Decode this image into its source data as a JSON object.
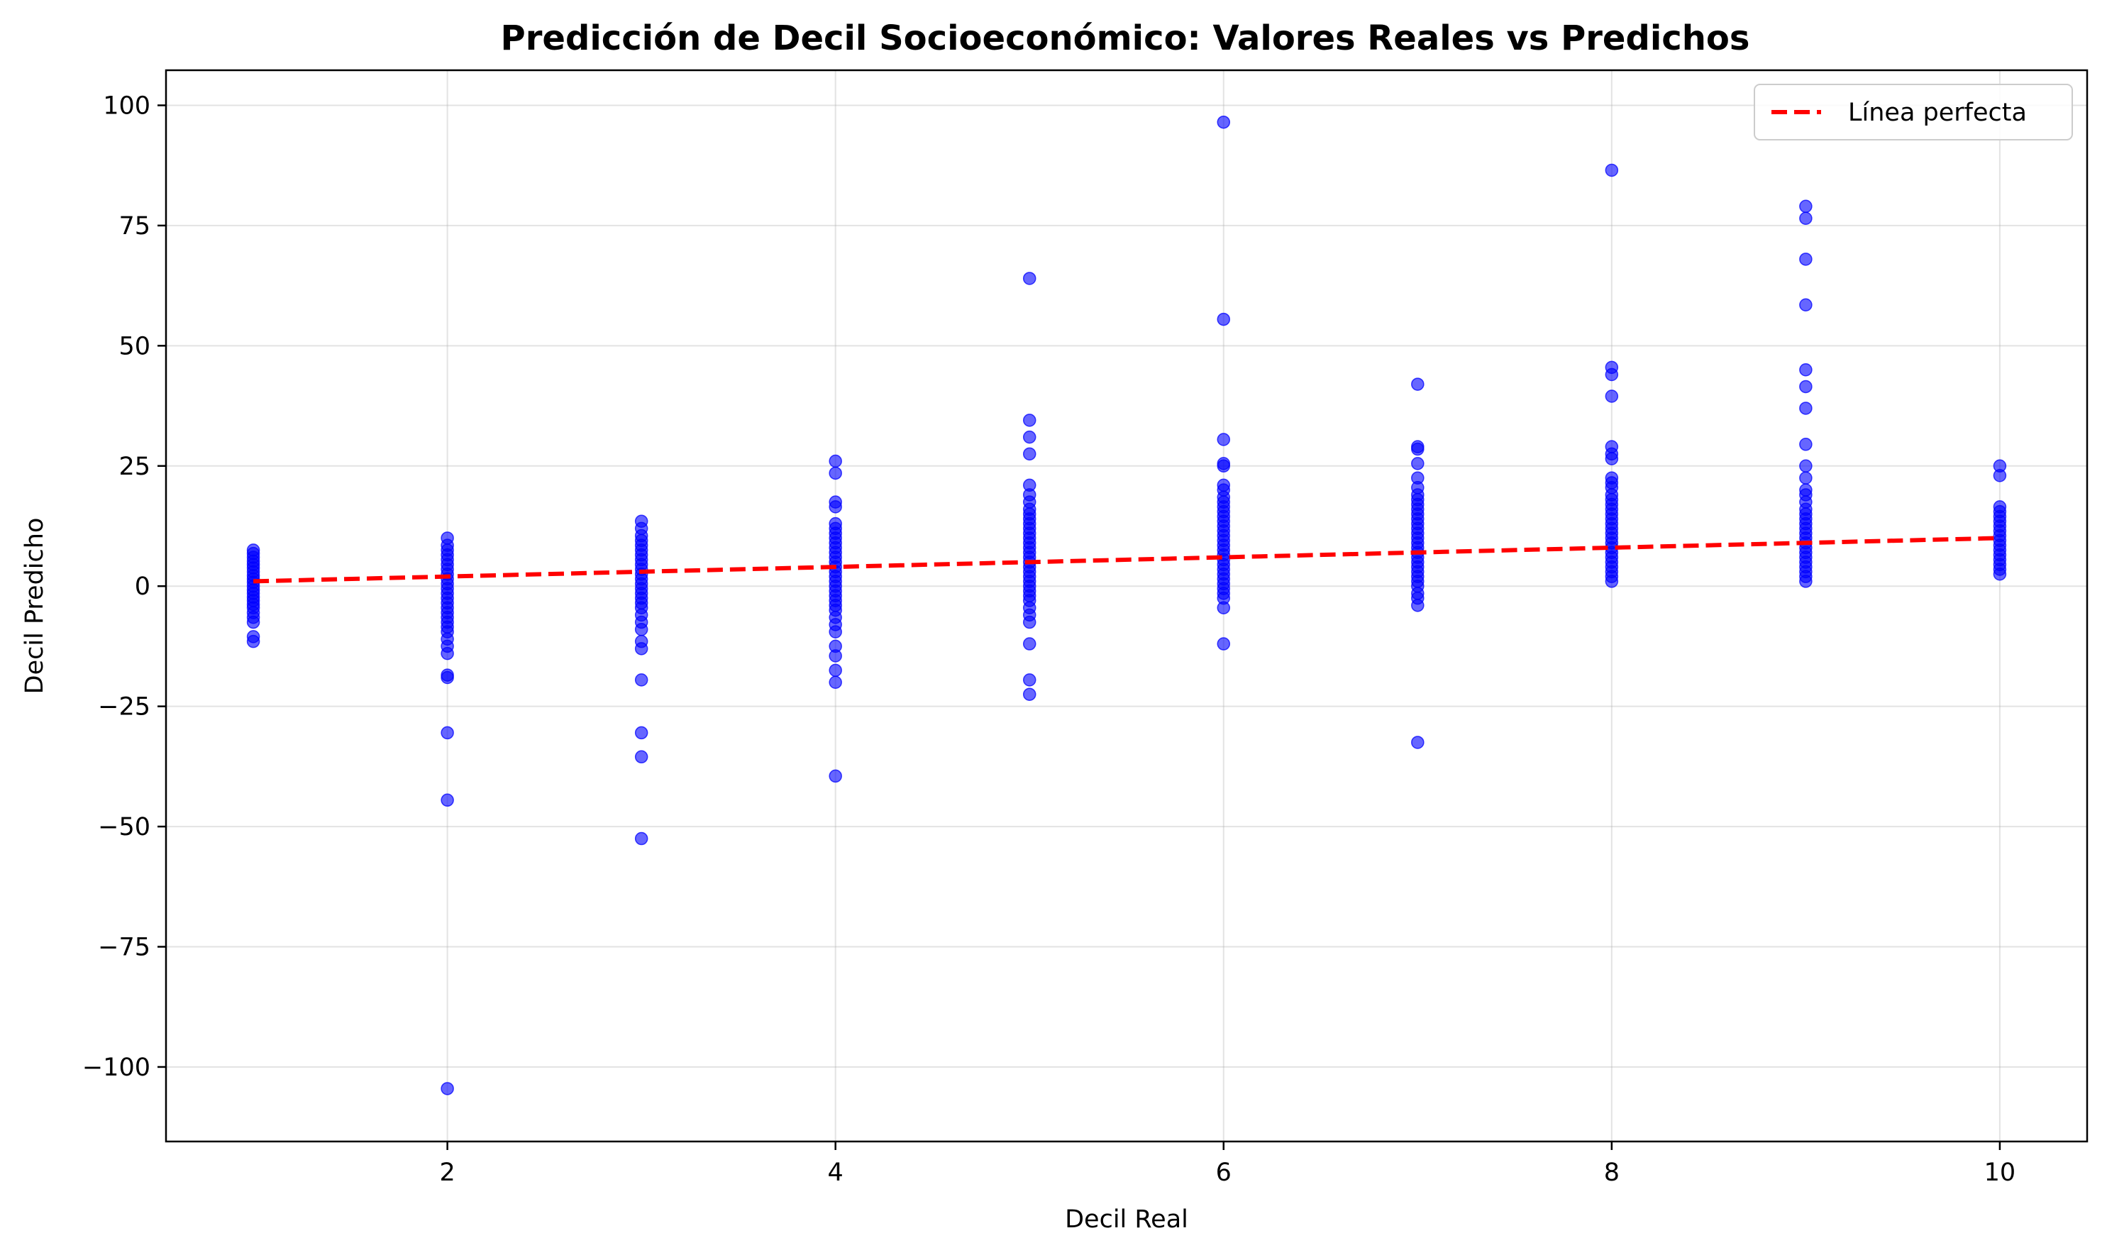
{
  "chart_data": {
    "type": "scatter",
    "title": "Predicción de Decil Socioeconómico: Valores Reales vs Predichos",
    "xlabel": "Decil Real",
    "ylabel": "Decil Predicho",
    "xlim": [
      0.55,
      10.45
    ],
    "ylim": [
      -115.5,
      107.3
    ],
    "xticks": [
      2,
      4,
      6,
      8,
      10
    ],
    "xtick_labels": [
      "2",
      "4",
      "6",
      "8",
      "10"
    ],
    "yticks": [
      -100,
      -75,
      -50,
      -25,
      0,
      25,
      50,
      75,
      100
    ],
    "ytick_labels": [
      "−100",
      "−75",
      "−50",
      "−25",
      "0",
      "25",
      "50",
      "75",
      "100"
    ],
    "grid": true,
    "legend": {
      "position": "top-right",
      "entries": [
        "Línea perfecta"
      ]
    },
    "colors": {
      "points": "#0000ff",
      "perfect_line": "#ff0000"
    },
    "series": [
      {
        "name": "",
        "style": "scatter",
        "points": [
          [
            1,
            7.5
          ],
          [
            1,
            6.8
          ],
          [
            1,
            6.0
          ],
          [
            1,
            5.2
          ],
          [
            1,
            4.5
          ],
          [
            1,
            3.8
          ],
          [
            1,
            3.0
          ],
          [
            1,
            2.2
          ],
          [
            1,
            1.5
          ],
          [
            1,
            0.8
          ],
          [
            1,
            0.0
          ],
          [
            1,
            -0.8
          ],
          [
            1,
            -1.5
          ],
          [
            1,
            -2.3
          ],
          [
            1,
            -3.0
          ],
          [
            1,
            -3.8
          ],
          [
            1,
            -4.5
          ],
          [
            1,
            -5.5
          ],
          [
            1,
            -6.5
          ],
          [
            1,
            -7.5
          ],
          [
            1,
            -10.5
          ],
          [
            1,
            -11.5
          ],
          [
            2,
            10.0
          ],
          [
            2,
            8.5
          ],
          [
            2,
            7.5
          ],
          [
            2,
            6.5
          ],
          [
            2,
            5.5
          ],
          [
            2,
            4.5
          ],
          [
            2,
            3.5
          ],
          [
            2,
            2.5
          ],
          [
            2,
            1.5
          ],
          [
            2,
            0.5
          ],
          [
            2,
            -0.5
          ],
          [
            2,
            -1.5
          ],
          [
            2,
            -2.5
          ],
          [
            2,
            -3.5
          ],
          [
            2,
            -4.5
          ],
          [
            2,
            -5.5
          ],
          [
            2,
            -6.5
          ],
          [
            2,
            -7.5
          ],
          [
            2,
            -8.5
          ],
          [
            2,
            -9.5
          ],
          [
            2,
            -11.0
          ],
          [
            2,
            -12.5
          ],
          [
            2,
            -14.0
          ],
          [
            2,
            -18.5
          ],
          [
            2,
            -19.0
          ],
          [
            2,
            -30.5
          ],
          [
            2,
            -44.5
          ],
          [
            2,
            -104.5
          ],
          [
            3,
            13.5
          ],
          [
            3,
            12.0
          ],
          [
            3,
            10.5
          ],
          [
            3,
            9.5
          ],
          [
            3,
            8.5
          ],
          [
            3,
            7.5
          ],
          [
            3,
            6.5
          ],
          [
            3,
            5.5
          ],
          [
            3,
            4.5
          ],
          [
            3,
            3.5
          ],
          [
            3,
            2.5
          ],
          [
            3,
            1.5
          ],
          [
            3,
            0.5
          ],
          [
            3,
            -0.5
          ],
          [
            3,
            -1.5
          ],
          [
            3,
            -2.5
          ],
          [
            3,
            -3.5
          ],
          [
            3,
            -4.5
          ],
          [
            3,
            -6.0
          ],
          [
            3,
            -7.5
          ],
          [
            3,
            -9.0
          ],
          [
            3,
            -11.5
          ],
          [
            3,
            -13.0
          ],
          [
            3,
            -19.5
          ],
          [
            3,
            -30.5
          ],
          [
            3,
            -35.5
          ],
          [
            3,
            -52.5
          ],
          [
            4,
            26.0
          ],
          [
            4,
            23.5
          ],
          [
            4,
            17.5
          ],
          [
            4,
            16.5
          ],
          [
            4,
            13.0
          ],
          [
            4,
            12.0
          ],
          [
            4,
            11.0
          ],
          [
            4,
            10.0
          ],
          [
            4,
            9.0
          ],
          [
            4,
            8.0
          ],
          [
            4,
            7.0
          ],
          [
            4,
            6.0
          ],
          [
            4,
            5.0
          ],
          [
            4,
            4.0
          ],
          [
            4,
            3.0
          ],
          [
            4,
            2.0
          ],
          [
            4,
            1.0
          ],
          [
            4,
            0.0
          ],
          [
            4,
            -1.0
          ],
          [
            4,
            -2.0
          ],
          [
            4,
            -3.0
          ],
          [
            4,
            -4.0
          ],
          [
            4,
            -5.0
          ],
          [
            4,
            -6.5
          ],
          [
            4,
            -8.0
          ],
          [
            4,
            -9.5
          ],
          [
            4,
            -12.5
          ],
          [
            4,
            -14.5
          ],
          [
            4,
            -17.5
          ],
          [
            4,
            -20.0
          ],
          [
            4,
            -39.5
          ],
          [
            5,
            64.0
          ],
          [
            5,
            34.5
          ],
          [
            5,
            31.0
          ],
          [
            5,
            27.5
          ],
          [
            5,
            21.0
          ],
          [
            5,
            19.0
          ],
          [
            5,
            17.5
          ],
          [
            5,
            16.0
          ],
          [
            5,
            15.0
          ],
          [
            5,
            14.0
          ],
          [
            5,
            13.0
          ],
          [
            5,
            12.0
          ],
          [
            5,
            11.0
          ],
          [
            5,
            10.0
          ],
          [
            5,
            9.0
          ],
          [
            5,
            8.0
          ],
          [
            5,
            7.0
          ],
          [
            5,
            6.0
          ],
          [
            5,
            5.0
          ],
          [
            5,
            4.0
          ],
          [
            5,
            3.0
          ],
          [
            5,
            2.0
          ],
          [
            5,
            1.0
          ],
          [
            5,
            0.0
          ],
          [
            5,
            -1.0
          ],
          [
            5,
            -2.0
          ],
          [
            5,
            -3.0
          ],
          [
            5,
            -4.5
          ],
          [
            5,
            -6.0
          ],
          [
            5,
            -7.5
          ],
          [
            5,
            -12.0
          ],
          [
            5,
            -19.5
          ],
          [
            5,
            -22.5
          ],
          [
            6,
            96.5
          ],
          [
            6,
            55.5
          ],
          [
            6,
            30.5
          ],
          [
            6,
            25.5
          ],
          [
            6,
            25.0
          ],
          [
            6,
            21.0
          ],
          [
            6,
            20.0
          ],
          [
            6,
            18.5
          ],
          [
            6,
            17.5
          ],
          [
            6,
            16.5
          ],
          [
            6,
            15.5
          ],
          [
            6,
            14.5
          ],
          [
            6,
            13.5
          ],
          [
            6,
            12.5
          ],
          [
            6,
            11.5
          ],
          [
            6,
            10.5
          ],
          [
            6,
            9.5
          ],
          [
            6,
            8.5
          ],
          [
            6,
            7.5
          ],
          [
            6,
            6.5
          ],
          [
            6,
            5.5
          ],
          [
            6,
            4.5
          ],
          [
            6,
            3.5
          ],
          [
            6,
            2.5
          ],
          [
            6,
            1.5
          ],
          [
            6,
            0.5
          ],
          [
            6,
            -0.5
          ],
          [
            6,
            -1.5
          ],
          [
            6,
            -2.5
          ],
          [
            6,
            -4.5
          ],
          [
            6,
            -12.0
          ],
          [
            7,
            42.0
          ],
          [
            7,
            29.0
          ],
          [
            7,
            28.5
          ],
          [
            7,
            25.5
          ],
          [
            7,
            22.5
          ],
          [
            7,
            20.5
          ],
          [
            7,
            19.0
          ],
          [
            7,
            18.0
          ],
          [
            7,
            17.0
          ],
          [
            7,
            16.0
          ],
          [
            7,
            15.0
          ],
          [
            7,
            14.0
          ],
          [
            7,
            13.0
          ],
          [
            7,
            12.0
          ],
          [
            7,
            11.0
          ],
          [
            7,
            10.0
          ],
          [
            7,
            9.0
          ],
          [
            7,
            8.0
          ],
          [
            7,
            7.0
          ],
          [
            7,
            6.0
          ],
          [
            7,
            5.0
          ],
          [
            7,
            4.0
          ],
          [
            7,
            3.0
          ],
          [
            7,
            2.0
          ],
          [
            7,
            1.0
          ],
          [
            7,
            0.0
          ],
          [
            7,
            -1.5
          ],
          [
            7,
            -2.5
          ],
          [
            7,
            -4.0
          ],
          [
            7,
            -32.5
          ],
          [
            8,
            86.5
          ],
          [
            8,
            45.5
          ],
          [
            8,
            44.0
          ],
          [
            8,
            39.5
          ],
          [
            8,
            29.0
          ],
          [
            8,
            27.5
          ],
          [
            8,
            26.5
          ],
          [
            8,
            22.5
          ],
          [
            8,
            21.5
          ],
          [
            8,
            20.5
          ],
          [
            8,
            19.0
          ],
          [
            8,
            18.0
          ],
          [
            8,
            17.0
          ],
          [
            8,
            16.0
          ],
          [
            8,
            15.0
          ],
          [
            8,
            14.0
          ],
          [
            8,
            13.0
          ],
          [
            8,
            12.0
          ],
          [
            8,
            11.0
          ],
          [
            8,
            10.0
          ],
          [
            8,
            9.0
          ],
          [
            8,
            8.0
          ],
          [
            8,
            7.0
          ],
          [
            8,
            6.0
          ],
          [
            8,
            5.0
          ],
          [
            8,
            4.0
          ],
          [
            8,
            3.0
          ],
          [
            8,
            2.0
          ],
          [
            8,
            1.0
          ],
          [
            9,
            79.0
          ],
          [
            9,
            76.5
          ],
          [
            9,
            68.0
          ],
          [
            9,
            58.5
          ],
          [
            9,
            45.0
          ],
          [
            9,
            41.5
          ],
          [
            9,
            37.0
          ],
          [
            9,
            29.5
          ],
          [
            9,
            25.0
          ],
          [
            9,
            22.5
          ],
          [
            9,
            20.0
          ],
          [
            9,
            19.0
          ],
          [
            9,
            17.5
          ],
          [
            9,
            16.0
          ],
          [
            9,
            15.0
          ],
          [
            9,
            14.0
          ],
          [
            9,
            13.0
          ],
          [
            9,
            12.0
          ],
          [
            9,
            11.0
          ],
          [
            9,
            10.0
          ],
          [
            9,
            9.0
          ],
          [
            9,
            8.0
          ],
          [
            9,
            7.0
          ],
          [
            9,
            6.0
          ],
          [
            9,
            5.0
          ],
          [
            9,
            4.0
          ],
          [
            9,
            3.0
          ],
          [
            9,
            2.0
          ],
          [
            9,
            1.0
          ],
          [
            10,
            25.0
          ],
          [
            10,
            23.0
          ],
          [
            10,
            16.5
          ],
          [
            10,
            15.5
          ],
          [
            10,
            14.5
          ],
          [
            10,
            13.5
          ],
          [
            10,
            12.5
          ],
          [
            10,
            11.5
          ],
          [
            10,
            10.5
          ],
          [
            10,
            9.5
          ],
          [
            10,
            8.5
          ],
          [
            10,
            7.5
          ],
          [
            10,
            6.5
          ],
          [
            10,
            5.5
          ],
          [
            10,
            4.5
          ],
          [
            10,
            3.5
          ],
          [
            10,
            2.5
          ]
        ]
      },
      {
        "name": "Línea perfecta",
        "style": "dashed-line",
        "x": [
          1,
          10
        ],
        "y": [
          1,
          10
        ]
      }
    ]
  }
}
